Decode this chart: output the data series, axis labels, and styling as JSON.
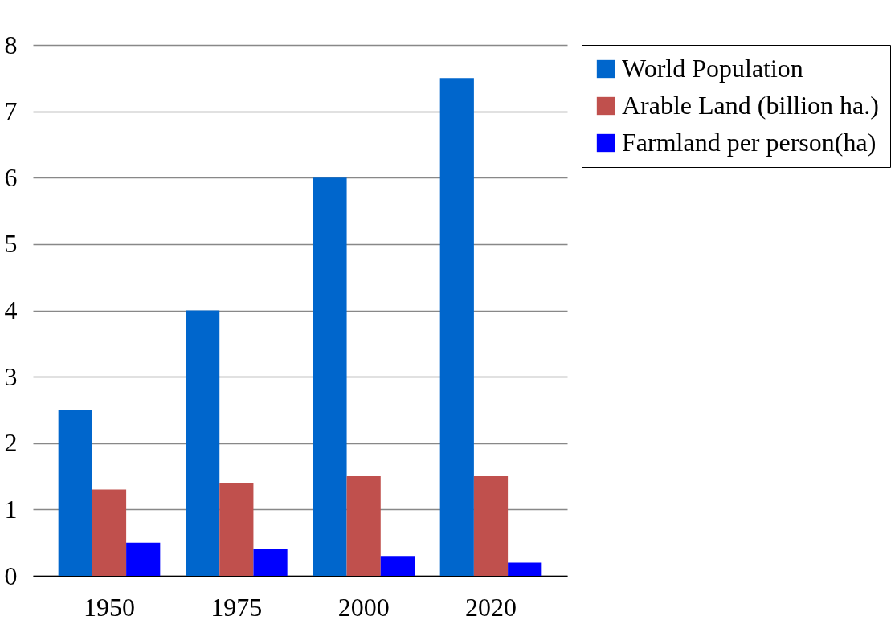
{
  "chart_data": {
    "type": "bar",
    "categories": [
      "1950",
      "1975",
      "2000",
      "2020"
    ],
    "series": [
      {
        "name": "World Population",
        "color": "#0066cc",
        "values": [
          2.5,
          4.0,
          6.0,
          7.5
        ]
      },
      {
        "name": "Arable Land (billion ha.)",
        "color": "#c0504d",
        "values": [
          1.3,
          1.4,
          1.5,
          1.5
        ]
      },
      {
        "name": "Farmland per person(ha)",
        "color": "#0000ff",
        "values": [
          0.5,
          0.4,
          0.3,
          0.2
        ]
      }
    ],
    "ylim": [
      0,
      8
    ],
    "yticks": [
      0,
      1,
      2,
      3,
      4,
      5,
      6,
      7,
      8
    ],
    "grid": "y",
    "legend": "top right"
  }
}
